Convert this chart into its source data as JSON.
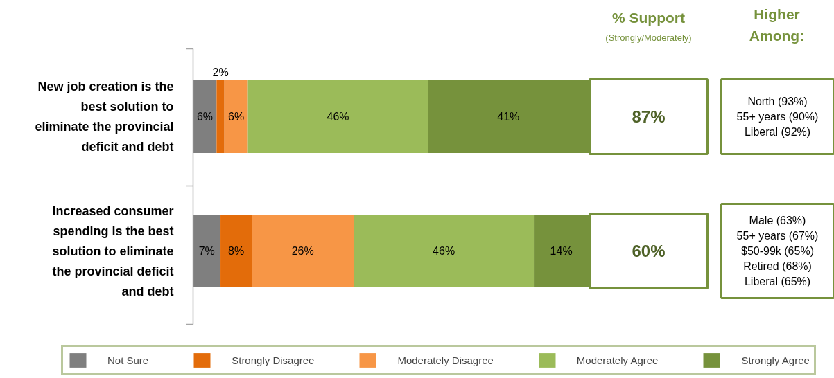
{
  "chart_data": {
    "type": "bar",
    "orientation": "horizontal",
    "stacked": true,
    "legend": "bottom",
    "categories": [
      "New job creation is the best solution to eliminate the provincial deficit and debt",
      "Increased consumer spending is the best solution to eliminate the provincial deficit and debt"
    ],
    "series": [
      {
        "name": "Not Sure",
        "color": "#7f7f7f",
        "values": [
          6,
          7
        ],
        "value_labels": [
          "6%",
          "7%"
        ]
      },
      {
        "name": "Strongly Disagree",
        "color": "#e36c0a",
        "values": [
          2,
          8
        ],
        "value_labels": [
          "2%",
          "8%"
        ]
      },
      {
        "name": "Moderately Disagree",
        "color": "#f79646",
        "values": [
          6,
          26
        ],
        "value_labels": [
          "6%",
          "26%"
        ]
      },
      {
        "name": "Moderately Agree",
        "color": "#9bbb59",
        "values": [
          46,
          46
        ],
        "value_labels": [
          "46%",
          "46%"
        ]
      },
      {
        "name": "Strongly Agree",
        "color": "#76923c",
        "values": [
          41,
          14
        ],
        "value_labels": [
          "41%",
          "14%"
        ]
      }
    ],
    "annotations": [
      "% Support",
      "(Strongly/Moderately)",
      "Higher Among:",
      "87%",
      "60%",
      "North (93%)\n55+ years (90%)\nLiberal (92%)",
      "Male (63%)\n55+ years (67%)\n$50-99k (65%)\nRetired (68%)\nLiberal (65%)"
    ]
  }
}
